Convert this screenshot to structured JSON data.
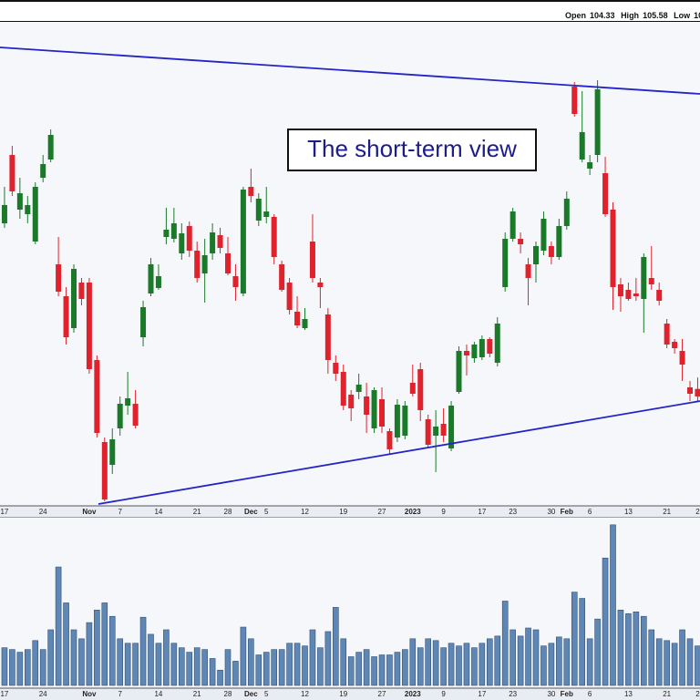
{
  "header": {
    "open_label": "Open",
    "open": 104.33,
    "high_label": "High",
    "high": 105.58,
    "low_label": "Low",
    "low_partial": "10"
  },
  "chart_data": {
    "type": "candlestick",
    "annotation": "The short-term view",
    "categories": [
      null,
      "17",
      null,
      null,
      null,
      null,
      "24",
      null,
      null,
      null,
      null,
      null,
      "Nov",
      null,
      null,
      null,
      "7",
      null,
      null,
      null,
      null,
      "14",
      null,
      null,
      null,
      null,
      "21",
      null,
      null,
      null,
      "28",
      null,
      null,
      "Dec",
      null,
      "5",
      null,
      null,
      null,
      null,
      "12",
      null,
      null,
      null,
      null,
      "19",
      null,
      null,
      null,
      null,
      "27",
      null,
      null,
      null,
      "2023",
      null,
      null,
      null,
      "9",
      null,
      null,
      null,
      null,
      "17",
      null,
      null,
      null,
      "23",
      null,
      null,
      null,
      null,
      "30",
      null,
      "Feb",
      null,
      null,
      "6",
      null,
      null,
      null,
      null,
      "13",
      null,
      null,
      null,
      null,
      "21",
      null,
      null,
      null,
      "2"
    ],
    "major_categories": [
      "Nov",
      "Dec",
      "2023",
      "Feb"
    ],
    "open": [
      122.0,
      122.5,
      130.0,
      124.0,
      123.5,
      120.5,
      127.5,
      129.5,
      118.0,
      114.5,
      111.0,
      116.0,
      116.0,
      107.5,
      98.5,
      96.0,
      100.0,
      102.5,
      102.7,
      110.0,
      114.8,
      115.4,
      121.0,
      120.8,
      119.2,
      122.2,
      119.5,
      117.0,
      119.2,
      121.2,
      119.2,
      116.7,
      114.8,
      126.5,
      122.8,
      123.2,
      123.2,
      118.0,
      116.0,
      112.8,
      111.0,
      120.5,
      116.0,
      112.5,
      107.2,
      106.2,
      103.7,
      104.0,
      103.5,
      100.0,
      103.2,
      99.7,
      99.0,
      99.2,
      105.0,
      106.5,
      101.0,
      99.2,
      100.5,
      97.8,
      104.0,
      108.5,
      107.7,
      107.8,
      109.8,
      107.2,
      115.5,
      120.8,
      120.8,
      118.0,
      118.0,
      119.5,
      120.0,
      118.8,
      122.2,
      137.5,
      129.5,
      128.5,
      130.0,
      128.0,
      124.0,
      115.8,
      115.2,
      114.8,
      114.2,
      116.5,
      115.2,
      111.5,
      109.5,
      108.5,
      104.5,
      104.33
    ],
    "high": [
      123.0,
      126.5,
      131.0,
      127.5,
      125.5,
      127.0,
      130.0,
      132.8,
      121.0,
      115.5,
      118.0,
      116.5,
      116.5,
      108.0,
      99.0,
      100.0,
      103.5,
      106.2,
      104.2,
      114.0,
      118.7,
      118.0,
      124.2,
      124.2,
      122.5,
      122.7,
      120.5,
      120.8,
      122.5,
      122.0,
      121.0,
      118.0,
      126.5,
      128.5,
      125.8,
      126.5,
      123.5,
      118.4,
      116.5,
      114.5,
      113.2,
      123.5,
      116.5,
      113.2,
      108.0,
      107.0,
      104.2,
      106.0,
      105.0,
      104.5,
      104.5,
      100.0,
      103.2,
      103.0,
      107.0,
      107.2,
      101.5,
      102.0,
      102.2,
      103.0,
      109.0,
      109.2,
      109.5,
      110.2,
      110.0,
      112.2,
      121.5,
      124.2,
      121.5,
      118.7,
      120.5,
      123.8,
      120.5,
      123.0,
      126.0,
      138.0,
      137.0,
      130.0,
      138.2,
      129.8,
      124.8,
      116.5,
      116.0,
      116.5,
      119.2,
      120.0,
      116.0,
      112.0,
      109.8,
      109.8,
      105.2,
      105.58
    ],
    "low": [
      118.0,
      122.0,
      125.5,
      123.0,
      122.5,
      120.2,
      127.0,
      129.2,
      114.5,
      109.2,
      110.5,
      113.5,
      106.0,
      99.0,
      92.0,
      95.0,
      99.2,
      101.5,
      100.0,
      109.0,
      114.5,
      115.2,
      120.2,
      120.4,
      118.5,
      118.8,
      116.0,
      113.8,
      118.5,
      119.2,
      116.8,
      114.0,
      114.5,
      124.8,
      122.2,
      122.5,
      118.0,
      115.0,
      112.5,
      111.0,
      110.8,
      116.0,
      113.2,
      106.0,
      105.2,
      102.0,
      100.8,
      103.2,
      99.5,
      99.5,
      99.5,
      97.2,
      98.5,
      98.8,
      103.5,
      100.8,
      97.8,
      95.2,
      98.5,
      97.5,
      103.8,
      105.8,
      107.2,
      107.5,
      107.8,
      106.8,
      115.0,
      120.5,
      119.2,
      113.5,
      116.0,
      119.0,
      118.0,
      118.5,
      121.8,
      134.2,
      129.2,
      127.8,
      129.2,
      123.2,
      113.0,
      112.8,
      114.0,
      114.0,
      110.5,
      115.2,
      113.5,
      108.8,
      108.2,
      105.2,
      103.0,
      103.0
    ],
    "close": [
      118.5,
      124.5,
      126.0,
      125.8,
      124.5,
      126.5,
      129.0,
      132.2,
      115.0,
      110.0,
      117.5,
      114.2,
      106.5,
      99.5,
      92.2,
      98.8,
      102.7,
      103.3,
      100.3,
      113.3,
      118.0,
      116.7,
      121.8,
      122.5,
      121.4,
      119.5,
      116.5,
      119.0,
      121.5,
      119.8,
      117.0,
      115.5,
      126.2,
      125.5,
      125.2,
      123.8,
      118.8,
      115.2,
      113.0,
      111.3,
      112.0,
      116.5,
      115.5,
      107.5,
      106.0,
      102.5,
      102.2,
      104.8,
      101.5,
      104.2,
      100.2,
      97.7,
      102.6,
      102.5,
      103.8,
      102.0,
      98.2,
      100.2,
      99.2,
      102.5,
      108.5,
      108.0,
      109.2,
      109.8,
      108.2,
      111.5,
      120.8,
      123.8,
      120.2,
      116.5,
      120.0,
      123.0,
      118.8,
      122.2,
      125.2,
      134.5,
      132.5,
      129.2,
      137.2,
      123.5,
      115.5,
      114.5,
      114.2,
      114.5,
      118.8,
      115.8,
      114.0,
      109.2,
      108.8,
      107.0,
      103.8,
      103.5
    ],
    "volume": [
      44,
      42,
      40,
      37,
      40,
      50,
      40,
      62,
      132,
      92,
      62,
      52,
      70,
      84,
      92,
      77,
      52,
      47,
      47,
      76,
      57,
      47,
      62,
      47,
      42,
      37,
      42,
      40,
      30,
      17,
      40,
      27,
      65,
      52,
      34,
      37,
      40,
      40,
      47,
      47,
      44,
      62,
      42,
      60,
      87,
      52,
      32,
      37,
      40,
      32,
      34,
      34,
      37,
      40,
      52,
      42,
      52,
      50,
      42,
      47,
      44,
      47,
      42,
      47,
      52,
      55,
      94,
      62,
      55,
      64,
      62,
      44,
      47,
      54,
      52,
      104,
      97,
      52,
      74,
      142,
      179,
      84,
      80,
      82,
      77,
      62,
      52,
      50,
      47,
      62,
      52,
      44
    ],
    "ylim": [
      91.5,
      144.5
    ],
    "vlim": [
      0,
      190
    ],
    "up_color": "#1b7a2a",
    "down_color": "#e0222c",
    "volume_color": "#5f87b5"
  }
}
